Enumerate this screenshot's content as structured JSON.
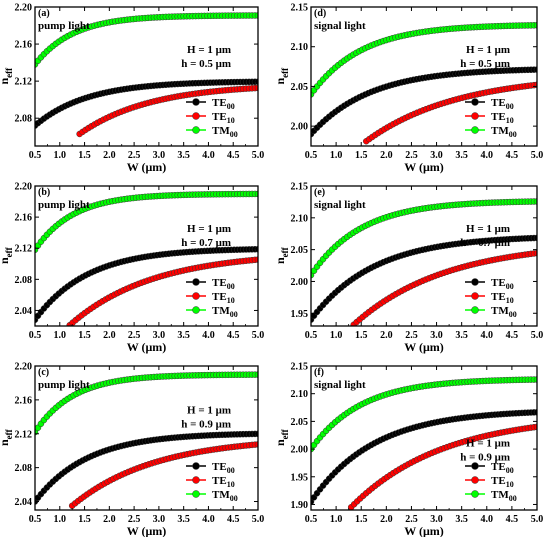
{
  "colors": {
    "TE00": "#000000",
    "TE10": "#ff0000",
    "TM00": "#00ff00"
  },
  "chart_data": [
    {
      "type": "scatter",
      "panel_label": "(a)",
      "title": "pump light",
      "xlabel": "W (μm)",
      "ylabel_main": "n",
      "ylabel_sub": "eff",
      "xlim": [
        0.5,
        5.0
      ],
      "ylim": [
        2.05,
        2.2
      ],
      "xticks": [
        "0.5",
        "1.0",
        "1.5",
        "2.0",
        "2.5",
        "3.0",
        "3.5",
        "4.0",
        "4.5",
        "5.0"
      ],
      "yticks": [
        "2.08",
        "2.12",
        "2.16",
        "2.20"
      ],
      "ytick_values": [
        2.08,
        2.12,
        2.16,
        2.2
      ],
      "annotation": [
        "H = 1 μm",
        "h = 0.5 μm"
      ],
      "legend": [
        {
          "main": "TE",
          "sub": "00",
          "color_key": "TE00"
        },
        {
          "main": "TE",
          "sub": "10",
          "color_key": "TE10"
        },
        {
          "main": "TM",
          "sub": "00",
          "color_key": "TM00"
        }
      ],
      "legend_position": "bottom-right",
      "series": [
        {
          "key": "TE00",
          "start_x": 0.5,
          "start_y": 2.072,
          "end_y": 2.12,
          "decay": 0.95
        },
        {
          "key": "TE10",
          "start_x": 1.4,
          "start_y": 2.063,
          "end_y": 2.117,
          "decay": 0.7
        },
        {
          "key": "TM00",
          "start_x": 0.5,
          "start_y": 2.138,
          "end_y": 2.191,
          "decay": 1.3
        }
      ]
    },
    {
      "type": "scatter",
      "panel_label": "(d)",
      "title": "signal light",
      "xlabel": "W (μm)",
      "ylabel_main": "n",
      "ylabel_sub": "eff",
      "xlim": [
        0.5,
        5.0
      ],
      "ylim": [
        1.975,
        2.15
      ],
      "xticks": [
        "0.5",
        "1.0",
        "1.5",
        "2.0",
        "2.5",
        "3.0",
        "3.5",
        "4.0",
        "4.5",
        "5.0"
      ],
      "yticks": [
        "2.00",
        "2.05",
        "2.10",
        "2.15"
      ],
      "ytick_values": [
        2.0,
        2.05,
        2.1,
        2.15
      ],
      "annotation": [
        "H = 1 μm",
        "h = 0.5 μm"
      ],
      "legend": [
        {
          "main": "TE",
          "sub": "00",
          "color_key": "TE00"
        },
        {
          "main": "TE",
          "sub": "10",
          "color_key": "TE10"
        },
        {
          "main": "TM",
          "sub": "00",
          "color_key": "TM00"
        }
      ],
      "legend_position": "bottom-right",
      "series": [
        {
          "key": "TE00",
          "start_x": 0.5,
          "start_y": 1.99,
          "end_y": 2.073,
          "decay": 0.85
        },
        {
          "key": "TE10",
          "start_x": 1.6,
          "start_y": 1.981,
          "end_y": 2.065,
          "decay": 0.55
        },
        {
          "key": "TM00",
          "start_x": 0.5,
          "start_y": 2.04,
          "end_y": 2.128,
          "decay": 1.0
        }
      ]
    },
    {
      "type": "scatter",
      "panel_label": "(b)",
      "title": "pump light",
      "xlabel": "W (μm)",
      "ylabel_main": "n",
      "ylabel_sub": "eff",
      "xlim": [
        0.5,
        5.0
      ],
      "ylim": [
        2.02,
        2.2
      ],
      "xticks": [
        "0.5",
        "1.0",
        "1.5",
        "2.0",
        "2.5",
        "3.0",
        "3.5",
        "4.0",
        "4.5",
        "5.0"
      ],
      "yticks": [
        "2.04",
        "2.08",
        "2.12",
        "2.16",
        "2.20"
      ],
      "ytick_values": [
        2.04,
        2.08,
        2.12,
        2.16,
        2.2
      ],
      "annotation": [
        "H = 1 μm",
        "h = 0.7 μm"
      ],
      "legend": [
        {
          "main": "TE",
          "sub": "00",
          "color_key": "TE00"
        },
        {
          "main": "TE",
          "sub": "10",
          "color_key": "TE10"
        },
        {
          "main": "TM",
          "sub": "00",
          "color_key": "TM00"
        }
      ],
      "legend_position": "bottom-right",
      "series": [
        {
          "key": "TE00",
          "start_x": 0.5,
          "start_y": 2.028,
          "end_y": 2.12,
          "decay": 0.95
        },
        {
          "key": "TE10",
          "start_x": 1.2,
          "start_y": 2.021,
          "end_y": 2.115,
          "decay": 0.6
        },
        {
          "key": "TM00",
          "start_x": 0.5,
          "start_y": 2.118,
          "end_y": 2.19,
          "decay": 1.3
        }
      ]
    },
    {
      "type": "scatter",
      "panel_label": "(e)",
      "title": "signal light",
      "xlabel": "W (μm)",
      "ylabel_main": "n",
      "ylabel_sub": "eff",
      "xlim": [
        0.5,
        5.0
      ],
      "ylim": [
        1.93,
        2.15
      ],
      "xticks": [
        "0.5",
        "1.0",
        "1.5",
        "2.0",
        "2.5",
        "3.0",
        "3.5",
        "4.0",
        "4.5",
        "5.0"
      ],
      "yticks": [
        "1.95",
        "2.00",
        "2.05",
        "2.10",
        "2.15"
      ],
      "ytick_values": [
        1.95,
        2.0,
        2.05,
        2.1,
        2.15
      ],
      "annotation": [
        "H = 1 μm",
        "h = 0.7 μm"
      ],
      "legend": [
        {
          "main": "TE",
          "sub": "00",
          "color_key": "TE00"
        },
        {
          "main": "TE",
          "sub": "10",
          "color_key": "TE10"
        },
        {
          "main": "TM",
          "sub": "00",
          "color_key": "TM00"
        }
      ],
      "legend_position": "bottom-right",
      "series": [
        {
          "key": "TE00",
          "start_x": 0.5,
          "start_y": 1.94,
          "end_y": 2.072,
          "decay": 0.8
        },
        {
          "key": "TE10",
          "start_x": 1.35,
          "start_y": 1.932,
          "end_y": 2.062,
          "decay": 0.55
        },
        {
          "key": "TM00",
          "start_x": 0.5,
          "start_y": 2.01,
          "end_y": 2.127,
          "decay": 1.0
        }
      ]
    },
    {
      "type": "scatter",
      "panel_label": "(c)",
      "title": "pump light",
      "xlabel": "W (μm)",
      "ylabel_main": "n",
      "ylabel_sub": "eff",
      "xlim": [
        0.5,
        5.0
      ],
      "ylim": [
        2.03,
        2.2
      ],
      "xticks": [
        "0.5",
        "1.0",
        "1.5",
        "2.0",
        "2.5",
        "3.0",
        "3.5",
        "4.0",
        "4.5",
        "5.0"
      ],
      "yticks": [
        "2.04",
        "2.08",
        "2.12",
        "2.16",
        "2.20"
      ],
      "ytick_values": [
        2.04,
        2.08,
        2.12,
        2.16,
        2.2
      ],
      "annotation": [
        "H = 1 μm",
        "h = 0.9 μm"
      ],
      "legend": [
        {
          "main": "TE",
          "sub": "00",
          "color_key": "TE00"
        },
        {
          "main": "TE",
          "sub": "10",
          "color_key": "TE10"
        },
        {
          "main": "TM",
          "sub": "00",
          "color_key": "TM00"
        }
      ],
      "legend_position": "bottom-right",
      "series": [
        {
          "key": "TE00",
          "start_x": 0.5,
          "start_y": 2.04,
          "end_y": 2.121,
          "decay": 0.95
        },
        {
          "key": "TE10",
          "start_x": 1.25,
          "start_y": 2.035,
          "end_y": 2.116,
          "decay": 0.6
        },
        {
          "key": "TM00",
          "start_x": 0.5,
          "start_y": 2.122,
          "end_y": 2.19,
          "decay": 1.3
        }
      ]
    },
    {
      "type": "scatter",
      "panel_label": "(f)",
      "title": "signal light",
      "xlabel": "W (μm)",
      "ylabel_main": "n",
      "ylabel_sub": "eff",
      "xlim": [
        0.5,
        5.0
      ],
      "ylim": [
        1.89,
        2.15
      ],
      "xticks": [
        "0.5",
        "1.0",
        "1.5",
        "2.0",
        "2.5",
        "3.0",
        "3.5",
        "4.0",
        "4.5",
        "5.0"
      ],
      "yticks": [
        "1.90",
        "1.95",
        "2.00",
        "2.05",
        "2.10",
        "2.15"
      ],
      "ytick_values": [
        1.9,
        1.95,
        2.0,
        2.05,
        2.1,
        2.15
      ],
      "annotation": [
        "H = 1 μm",
        "h = 0.9 μm"
      ],
      "legend": [
        {
          "main": "TE",
          "sub": "00",
          "color_key": "TE00"
        },
        {
          "main": "TE",
          "sub": "10",
          "color_key": "TE10"
        },
        {
          "main": "TM",
          "sub": "00",
          "color_key": "TM00"
        }
      ],
      "legend_position": "bottom-right",
      "series": [
        {
          "key": "TE00",
          "start_x": 0.5,
          "start_y": 1.905,
          "end_y": 2.071,
          "decay": 0.8
        },
        {
          "key": "TE10",
          "start_x": 1.3,
          "start_y": 1.895,
          "end_y": 2.062,
          "decay": 0.55
        },
        {
          "key": "TM00",
          "start_x": 0.5,
          "start_y": 2.0,
          "end_y": 2.127,
          "decay": 1.0
        }
      ]
    }
  ]
}
